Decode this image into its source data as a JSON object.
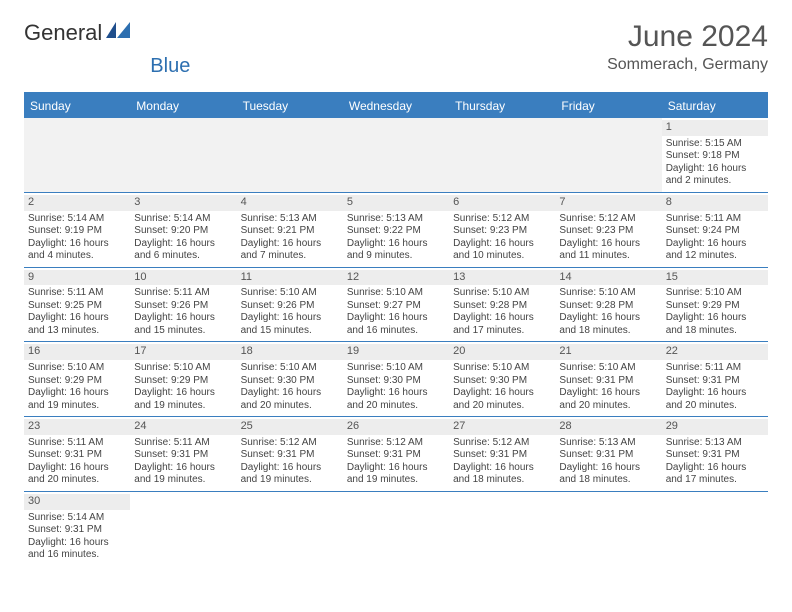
{
  "brand": {
    "general": "General",
    "blue": "Blue"
  },
  "title": "June 2024",
  "location": "Sommerach, Germany",
  "colors": {
    "accent": "#3a7ebf",
    "header_text": "#ffffff",
    "daynum_bg": "#ededed"
  },
  "days_of_week": [
    "Sunday",
    "Monday",
    "Tuesday",
    "Wednesday",
    "Thursday",
    "Friday",
    "Saturday"
  ],
  "weeks": [
    [
      null,
      null,
      null,
      null,
      null,
      null,
      {
        "n": "1",
        "sr": "Sunrise: 5:15 AM",
        "ss": "Sunset: 9:18 PM",
        "dl": "Daylight: 16 hours and 2 minutes."
      }
    ],
    [
      {
        "n": "2",
        "sr": "Sunrise: 5:14 AM",
        "ss": "Sunset: 9:19 PM",
        "dl": "Daylight: 16 hours and 4 minutes."
      },
      {
        "n": "3",
        "sr": "Sunrise: 5:14 AM",
        "ss": "Sunset: 9:20 PM",
        "dl": "Daylight: 16 hours and 6 minutes."
      },
      {
        "n": "4",
        "sr": "Sunrise: 5:13 AM",
        "ss": "Sunset: 9:21 PM",
        "dl": "Daylight: 16 hours and 7 minutes."
      },
      {
        "n": "5",
        "sr": "Sunrise: 5:13 AM",
        "ss": "Sunset: 9:22 PM",
        "dl": "Daylight: 16 hours and 9 minutes."
      },
      {
        "n": "6",
        "sr": "Sunrise: 5:12 AM",
        "ss": "Sunset: 9:23 PM",
        "dl": "Daylight: 16 hours and 10 minutes."
      },
      {
        "n": "7",
        "sr": "Sunrise: 5:12 AM",
        "ss": "Sunset: 9:23 PM",
        "dl": "Daylight: 16 hours and 11 minutes."
      },
      {
        "n": "8",
        "sr": "Sunrise: 5:11 AM",
        "ss": "Sunset: 9:24 PM",
        "dl": "Daylight: 16 hours and 12 minutes."
      }
    ],
    [
      {
        "n": "9",
        "sr": "Sunrise: 5:11 AM",
        "ss": "Sunset: 9:25 PM",
        "dl": "Daylight: 16 hours and 13 minutes."
      },
      {
        "n": "10",
        "sr": "Sunrise: 5:11 AM",
        "ss": "Sunset: 9:26 PM",
        "dl": "Daylight: 16 hours and 15 minutes."
      },
      {
        "n": "11",
        "sr": "Sunrise: 5:10 AM",
        "ss": "Sunset: 9:26 PM",
        "dl": "Daylight: 16 hours and 15 minutes."
      },
      {
        "n": "12",
        "sr": "Sunrise: 5:10 AM",
        "ss": "Sunset: 9:27 PM",
        "dl": "Daylight: 16 hours and 16 minutes."
      },
      {
        "n": "13",
        "sr": "Sunrise: 5:10 AM",
        "ss": "Sunset: 9:28 PM",
        "dl": "Daylight: 16 hours and 17 minutes."
      },
      {
        "n": "14",
        "sr": "Sunrise: 5:10 AM",
        "ss": "Sunset: 9:28 PM",
        "dl": "Daylight: 16 hours and 18 minutes."
      },
      {
        "n": "15",
        "sr": "Sunrise: 5:10 AM",
        "ss": "Sunset: 9:29 PM",
        "dl": "Daylight: 16 hours and 18 minutes."
      }
    ],
    [
      {
        "n": "16",
        "sr": "Sunrise: 5:10 AM",
        "ss": "Sunset: 9:29 PM",
        "dl": "Daylight: 16 hours and 19 minutes."
      },
      {
        "n": "17",
        "sr": "Sunrise: 5:10 AM",
        "ss": "Sunset: 9:29 PM",
        "dl": "Daylight: 16 hours and 19 minutes."
      },
      {
        "n": "18",
        "sr": "Sunrise: 5:10 AM",
        "ss": "Sunset: 9:30 PM",
        "dl": "Daylight: 16 hours and 20 minutes."
      },
      {
        "n": "19",
        "sr": "Sunrise: 5:10 AM",
        "ss": "Sunset: 9:30 PM",
        "dl": "Daylight: 16 hours and 20 minutes."
      },
      {
        "n": "20",
        "sr": "Sunrise: 5:10 AM",
        "ss": "Sunset: 9:30 PM",
        "dl": "Daylight: 16 hours and 20 minutes."
      },
      {
        "n": "21",
        "sr": "Sunrise: 5:10 AM",
        "ss": "Sunset: 9:31 PM",
        "dl": "Daylight: 16 hours and 20 minutes."
      },
      {
        "n": "22",
        "sr": "Sunrise: 5:11 AM",
        "ss": "Sunset: 9:31 PM",
        "dl": "Daylight: 16 hours and 20 minutes."
      }
    ],
    [
      {
        "n": "23",
        "sr": "Sunrise: 5:11 AM",
        "ss": "Sunset: 9:31 PM",
        "dl": "Daylight: 16 hours and 20 minutes."
      },
      {
        "n": "24",
        "sr": "Sunrise: 5:11 AM",
        "ss": "Sunset: 9:31 PM",
        "dl": "Daylight: 16 hours and 19 minutes."
      },
      {
        "n": "25",
        "sr": "Sunrise: 5:12 AM",
        "ss": "Sunset: 9:31 PM",
        "dl": "Daylight: 16 hours and 19 minutes."
      },
      {
        "n": "26",
        "sr": "Sunrise: 5:12 AM",
        "ss": "Sunset: 9:31 PM",
        "dl": "Daylight: 16 hours and 19 minutes."
      },
      {
        "n": "27",
        "sr": "Sunrise: 5:12 AM",
        "ss": "Sunset: 9:31 PM",
        "dl": "Daylight: 16 hours and 18 minutes."
      },
      {
        "n": "28",
        "sr": "Sunrise: 5:13 AM",
        "ss": "Sunset: 9:31 PM",
        "dl": "Daylight: 16 hours and 18 minutes."
      },
      {
        "n": "29",
        "sr": "Sunrise: 5:13 AM",
        "ss": "Sunset: 9:31 PM",
        "dl": "Daylight: 16 hours and 17 minutes."
      }
    ],
    [
      {
        "n": "30",
        "sr": "Sunrise: 5:14 AM",
        "ss": "Sunset: 9:31 PM",
        "dl": "Daylight: 16 hours and 16 minutes."
      },
      null,
      null,
      null,
      null,
      null,
      null
    ]
  ]
}
